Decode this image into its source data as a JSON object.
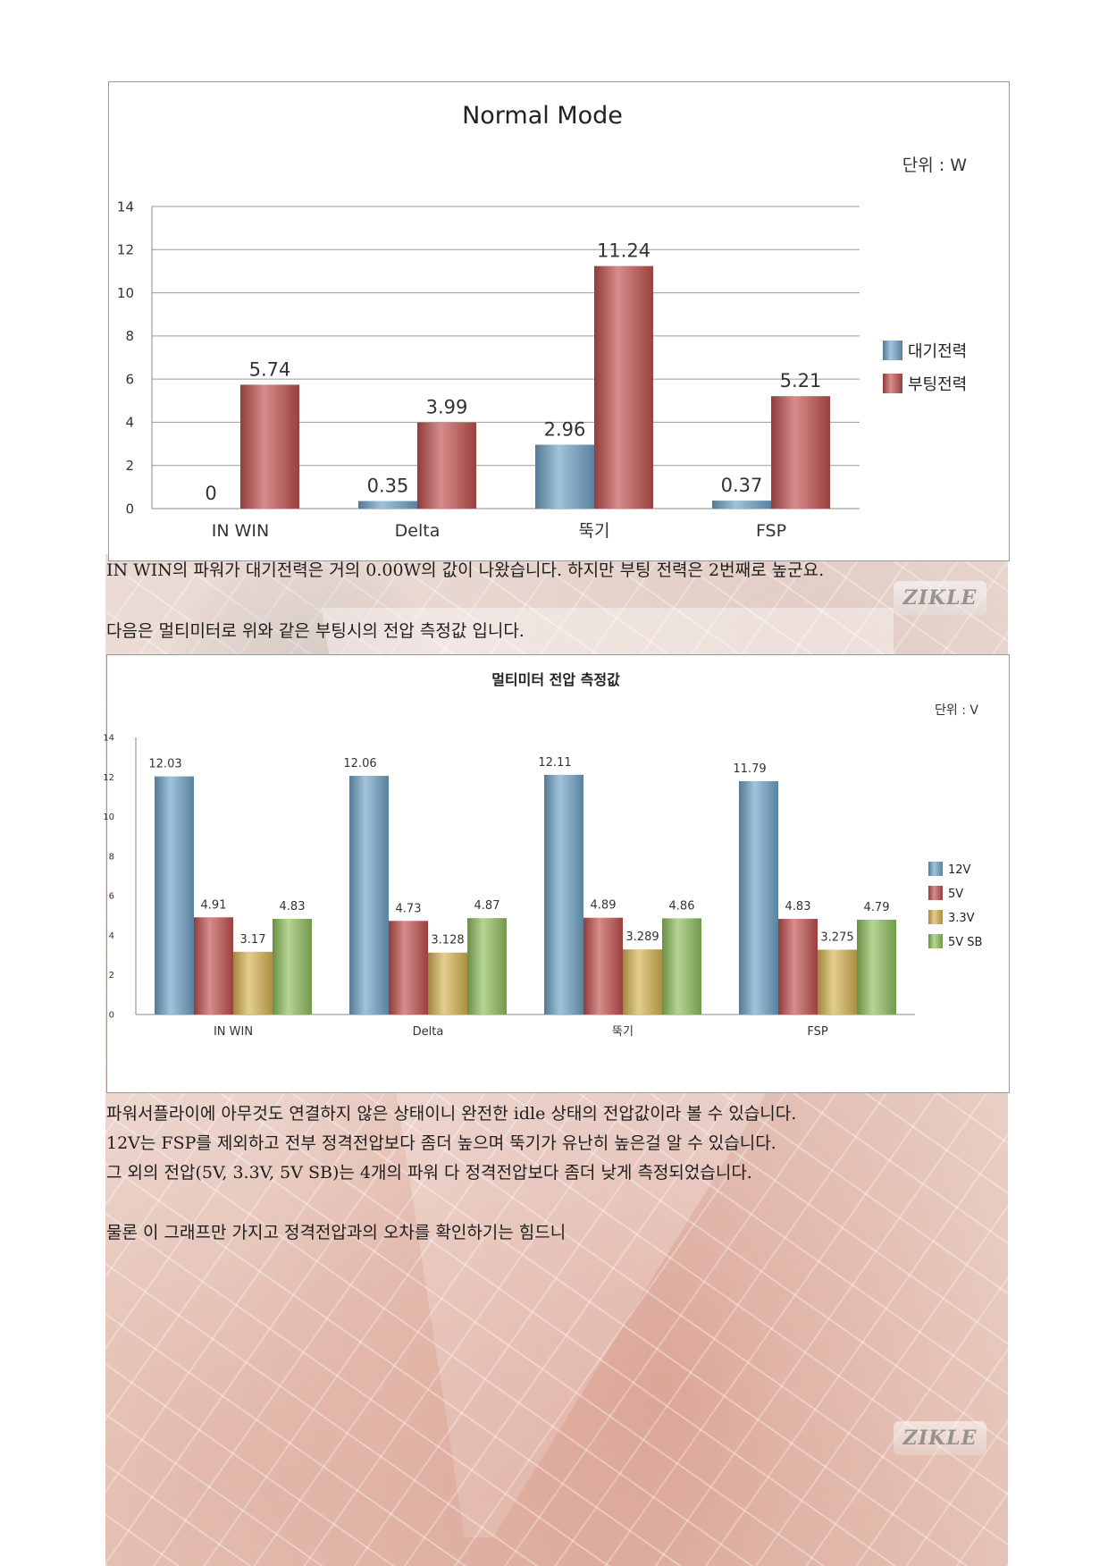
{
  "chart_data": [
    {
      "type": "bar",
      "title": "Normal Mode",
      "unit_note": "단위 : W",
      "categories": [
        "IN WIN",
        "Delta",
        "뚝기",
        "FSP"
      ],
      "series": [
        {
          "name": "대기전력",
          "values": [
            0,
            0.35,
            2.96,
            0.37
          ],
          "labels": [
            "0",
            "0.35",
            "2.96",
            "0.37"
          ],
          "color": "#6fa3c6"
        },
        {
          "name": "부팅전력",
          "values": [
            5.74,
            3.99,
            11.24,
            5.21
          ],
          "labels": [
            "5.74",
            "3.99",
            "11.24",
            "5.21"
          ],
          "color": "#c0504d"
        }
      ],
      "yticks": [
        "0",
        "2",
        "4",
        "6",
        "8",
        "10",
        "12",
        "14"
      ],
      "ylim": [
        0,
        14
      ],
      "grid": true,
      "legend": "right"
    },
    {
      "type": "bar",
      "title": "멀티미터 전압 측정값",
      "unit_note": "단위 : V",
      "categories": [
        "IN WIN",
        "Delta",
        "뚝기",
        "FSP"
      ],
      "series": [
        {
          "name": "12V",
          "values": [
            12.03,
            12.06,
            12.11,
            11.79
          ],
          "labels": [
            "12.03",
            "12.06",
            "12.11",
            "11.79"
          ],
          "color": "#6fa3c6"
        },
        {
          "name": "5V",
          "values": [
            4.91,
            4.73,
            4.89,
            4.83
          ],
          "labels": [
            "4.91",
            "4.73",
            "4.89",
            "4.83"
          ],
          "color": "#c0504d"
        },
        {
          "name": "3.3V",
          "values": [
            3.17,
            3.128,
            3.289,
            3.275
          ],
          "labels": [
            "3.17",
            "3.128",
            "3.289",
            "3.275"
          ],
          "color": "#d6b452"
        },
        {
          "name": "5V SB",
          "values": [
            4.83,
            4.87,
            4.86,
            4.79
          ],
          "labels": [
            "4.83",
            "4.87",
            "4.86",
            "4.79"
          ],
          "color": "#8fbe5c"
        }
      ],
      "yticks": [
        "0",
        "2",
        "4",
        "6",
        "8",
        "10",
        "12",
        "14"
      ],
      "ylim": [
        0,
        14
      ],
      "grid": false,
      "legend": "right"
    }
  ],
  "text": {
    "p1": "IN WIN의 파워가 대기전력은 거의 0.00W의 값이 나왔습니다. 하지만 부팅 전력은 2번째로 높군요.",
    "p2": "다음은 멀티미터로 위와 같은 부팅시의 전압 측정값 입니다.",
    "p3": [
      "파워서플라이에 아무것도 연결하지 않은 상태이니 완전한 idle 상태의 전압값이라 볼 수 있습니다.",
      "12V는 FSP를 제외하고 전부 정격전압보다 좀더 높으며 뚝기가 유난히 높은걸 알 수 있습니다.",
      "그 외의 전압(5V, 3.3V, 5V SB)는 4개의 파워 다 정격전압보다 좀더 낮게 측정되었습니다."
    ],
    "p4": "물론 이 그래프만 가지고 정격전압과의 오차를 확인하기는 힘드니"
  },
  "watermark": "ZIKLE"
}
